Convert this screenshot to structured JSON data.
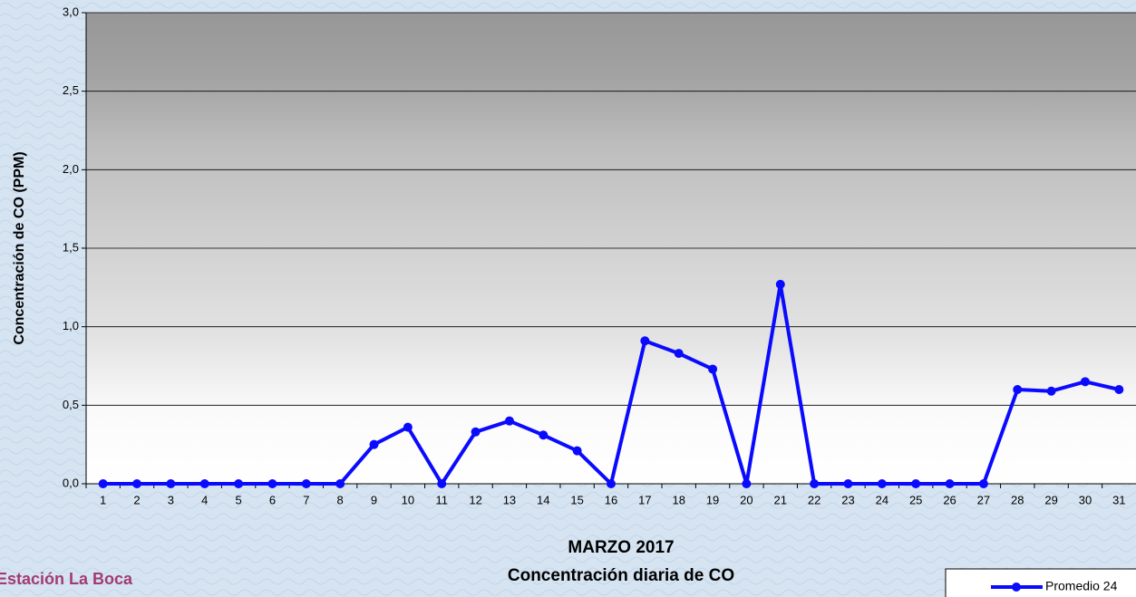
{
  "chart_data": {
    "type": "line",
    "title": "MARZO 2017",
    "subtitle": "Concentración diaria de CO",
    "station": "Estación La Boca",
    "y_label": "Concentración de CO (PPM)",
    "categories": [
      "1",
      "2",
      "3",
      "4",
      "5",
      "6",
      "7",
      "8",
      "9",
      "10",
      "11",
      "12",
      "13",
      "14",
      "15",
      "16",
      "17",
      "18",
      "19",
      "20",
      "21",
      "22",
      "23",
      "24",
      "25",
      "26",
      "27",
      "28",
      "29",
      "30",
      "31"
    ],
    "series": [
      {
        "name": "Promedio 24",
        "color": "#0a0aff",
        "values": [
          0,
          0,
          0,
          0,
          0,
          0,
          0,
          0,
          0.25,
          0.36,
          0,
          0.33,
          0.4,
          0.31,
          0.21,
          0,
          0.91,
          0.83,
          0.73,
          0,
          1.27,
          0,
          0,
          0,
          0,
          0,
          0,
          0.6,
          0.59,
          0.65,
          0.6
        ]
      }
    ],
    "ylim": [
      0,
      3
    ],
    "yticks": [
      {
        "value": 0,
        "label": "0,0"
      },
      {
        "value": 0.5,
        "label": "0,5"
      },
      {
        "value": 1,
        "label": "1,0"
      },
      {
        "value": 1.5,
        "label": "1,5"
      },
      {
        "value": 2,
        "label": "2,0"
      },
      {
        "value": 2.5,
        "label": "2,5"
      },
      {
        "value": 3,
        "label": "3,0"
      }
    ],
    "grid": true
  }
}
